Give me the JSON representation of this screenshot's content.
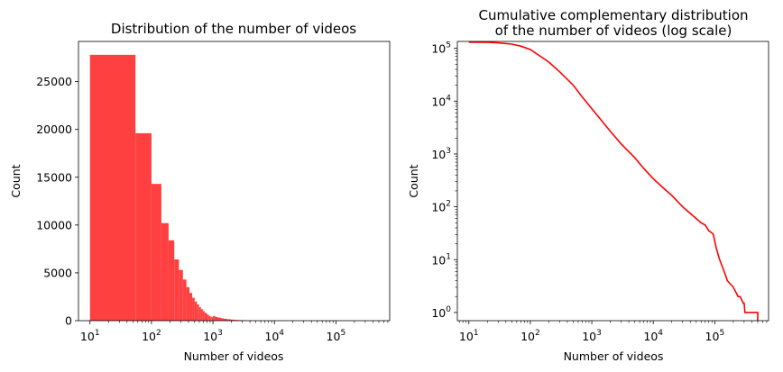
{
  "chart_data": [
    {
      "type": "bar",
      "title": "Distribution of the number of videos",
      "xlabel": "Number of videos",
      "ylabel": "Count",
      "xscale": "log",
      "xlim": [
        6.5,
        750000
      ],
      "ylim": [
        0,
        29200
      ],
      "x_ticks": [
        {
          "base": "10",
          "exp": "1",
          "value": 10
        },
        {
          "base": "10",
          "exp": "2",
          "value": 100
        },
        {
          "base": "10",
          "exp": "3",
          "value": 1000
        },
        {
          "base": "10",
          "exp": "4",
          "value": 10000
        },
        {
          "base": "10",
          "exp": "5",
          "value": 100000
        }
      ],
      "y_ticks": [
        {
          "label": "0",
          "value": 0
        },
        {
          "label": "5000",
          "value": 5000
        },
        {
          "label": "10000",
          "value": 10000
        },
        {
          "label": "15000",
          "value": 15000
        },
        {
          "label": "20000",
          "value": 20000
        },
        {
          "label": "25000",
          "value": 25000
        }
      ],
      "bar_color": "#ff4040",
      "bins": [
        {
          "x0": 10,
          "x1": 55,
          "count": 27800
        },
        {
          "x0": 55,
          "x1": 100,
          "count": 19600
        },
        {
          "x0": 100,
          "x1": 145,
          "count": 14300
        },
        {
          "x0": 145,
          "x1": 190,
          "count": 10200
        },
        {
          "x0": 190,
          "x1": 235,
          "count": 8400
        },
        {
          "x0": 235,
          "x1": 280,
          "count": 6400
        },
        {
          "x0": 280,
          "x1": 325,
          "count": 5300
        },
        {
          "x0": 325,
          "x1": 370,
          "count": 4300
        },
        {
          "x0": 370,
          "x1": 415,
          "count": 3500
        },
        {
          "x0": 415,
          "x1": 460,
          "count": 2900
        },
        {
          "x0": 460,
          "x1": 505,
          "count": 2400
        },
        {
          "x0": 505,
          "x1": 550,
          "count": 2000
        },
        {
          "x0": 550,
          "x1": 595,
          "count": 1700
        },
        {
          "x0": 595,
          "x1": 640,
          "count": 1400
        },
        {
          "x0": 640,
          "x1": 685,
          "count": 1200
        },
        {
          "x0": 685,
          "x1": 730,
          "count": 1000
        },
        {
          "x0": 730,
          "x1": 775,
          "count": 850
        },
        {
          "x0": 775,
          "x1": 820,
          "count": 720
        },
        {
          "x0": 820,
          "x1": 865,
          "count": 600
        },
        {
          "x0": 865,
          "x1": 910,
          "count": 500
        },
        {
          "x0": 910,
          "x1": 955,
          "count": 420
        },
        {
          "x0": 955,
          "x1": 1000,
          "count": 360
        },
        {
          "x0": 1000,
          "x1": 1100,
          "count": 480
        },
        {
          "x0": 1100,
          "x1": 1200,
          "count": 380
        },
        {
          "x0": 1200,
          "x1": 1350,
          "count": 320
        },
        {
          "x0": 1350,
          "x1": 1500,
          "count": 250
        },
        {
          "x0": 1500,
          "x1": 1700,
          "count": 200
        },
        {
          "x0": 1700,
          "x1": 1950,
          "count": 150
        },
        {
          "x0": 1950,
          "x1": 2250,
          "count": 110
        },
        {
          "x0": 2250,
          "x1": 2600,
          "count": 80
        },
        {
          "x0": 2600,
          "x1": 3000,
          "count": 60
        },
        {
          "x0": 3000,
          "x1": 3500,
          "count": 40
        }
      ]
    },
    {
      "type": "line",
      "title": "Cumulative complementary distribution\nof the number of videos (log scale)",
      "title_lines": [
        "Cumulative complementary distribution",
        "of the number of videos (log scale)"
      ],
      "xlabel": "Number of videos",
      "ylabel": "Count",
      "xscale": "log",
      "yscale": "log",
      "xlim": [
        6.5,
        750000
      ],
      "ylim": [
        0.7,
        135000
      ],
      "x_ticks": [
        {
          "base": "10",
          "exp": "1",
          "value": 10
        },
        {
          "base": "10",
          "exp": "2",
          "value": 100
        },
        {
          "base": "10",
          "exp": "3",
          "value": 1000
        },
        {
          "base": "10",
          "exp": "4",
          "value": 10000
        },
        {
          "base": "10",
          "exp": "5",
          "value": 100000
        }
      ],
      "y_ticks": [
        {
          "base": "10",
          "exp": "0",
          "value": 1
        },
        {
          "base": "10",
          "exp": "1",
          "value": 10
        },
        {
          "base": "10",
          "exp": "2",
          "value": 100
        },
        {
          "base": "10",
          "exp": "3",
          "value": 1000
        },
        {
          "base": "10",
          "exp": "4",
          "value": 10000
        },
        {
          "base": "10",
          "exp": "5",
          "value": 100000
        }
      ],
      "line_color": "#ff0000",
      "x": [
        10,
        20,
        30,
        50,
        70,
        100,
        200,
        300,
        500,
        700,
        1000,
        2000,
        3000,
        5000,
        7000,
        10000,
        15000,
        20000,
        30000,
        40000,
        50000,
        60000,
        70000,
        80000,
        90000,
        95000,
        100000,
        105000,
        110000,
        120000,
        150000,
        160000,
        200000,
        240000,
        260000,
        290000,
        300000,
        310000,
        350000,
        400000,
        450000,
        500000
      ],
      "y": [
        131000,
        130000,
        127000,
        120000,
        110000,
        95000,
        55000,
        36000,
        20000,
        12000,
        7200,
        2700,
        1550,
        850,
        530,
        340,
        220,
        165,
        100,
        75,
        60,
        50,
        45,
        35,
        32,
        30,
        22,
        17,
        14,
        10,
        5,
        4,
        3,
        2,
        2,
        1.5,
        1.5,
        1,
        1,
        1,
        1,
        1
      ]
    }
  ]
}
